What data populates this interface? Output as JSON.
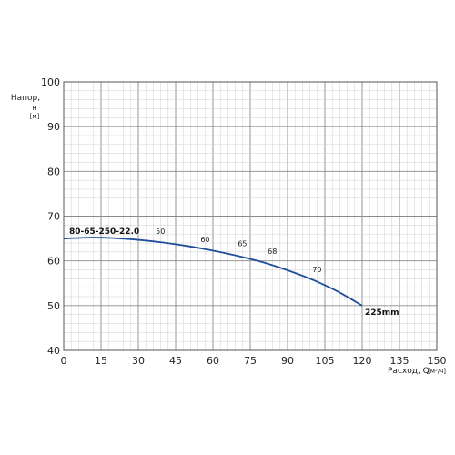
{
  "colors": {
    "curve": "#1f4e9a",
    "grid_major": "#8a8a8a",
    "grid_minor": "#cfcfcf",
    "frame": "#555555"
  },
  "chart_data": {
    "type": "line",
    "x_title": "Расход, Q",
    "x_unit": "[м³/ч]",
    "y_title": "Напор,",
    "y_symbol": "H",
    "y_unit": "[м]",
    "xlim": [
      0,
      150
    ],
    "ylim": [
      40,
      100
    ],
    "x_ticks": [
      0,
      15,
      30,
      45,
      60,
      75,
      90,
      105,
      120,
      135,
      150
    ],
    "y_ticks": [
      40,
      50,
      60,
      70,
      80,
      90,
      100
    ],
    "grid": true,
    "series": [
      {
        "name": "80-65-250-22.0",
        "end_label": "225mm",
        "x": [
          0,
          10,
          20,
          30,
          40,
          50,
          60,
          70,
          80,
          90,
          100,
          110,
          120
        ],
        "y": [
          65,
          65.2,
          65.1,
          64.7,
          64.1,
          63.3,
          62.3,
          61.1,
          59.7,
          57.9,
          55.8,
          53.2,
          50
        ]
      }
    ],
    "efficiency_labels": [
      {
        "text": "50",
        "x": 37,
        "y": 66
      },
      {
        "text": "60",
        "x": 55,
        "y": 64.2
      },
      {
        "text": "65",
        "x": 70,
        "y": 63.3
      },
      {
        "text": "68",
        "x": 82,
        "y": 61.6
      },
      {
        "text": "70",
        "x": 100,
        "y": 57.5
      }
    ]
  }
}
